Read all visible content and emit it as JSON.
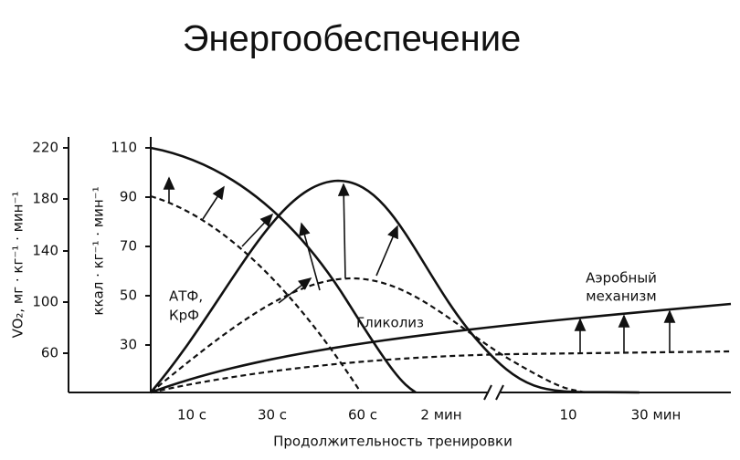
{
  "title": "Энергообеспечение",
  "left_axis": {
    "label": "VO₂, мг · кг⁻¹ · мин⁻¹",
    "ticks": [
      "220",
      "180",
      "140",
      "100",
      "60"
    ]
  },
  "right_axis": {
    "label": "ккал · кг⁻¹ · мин⁻¹",
    "ticks": [
      "110",
      "90",
      "70",
      "50",
      "30"
    ]
  },
  "x_axis": {
    "label": "Продолжительность тренировки",
    "ticks": [
      "10 с",
      "30 с",
      "60 с",
      "2 мин",
      "10",
      "30 мин"
    ]
  },
  "curve_labels": {
    "atp": [
      "АТФ,",
      "КрФ"
    ],
    "glycolysis": "Гликолиз",
    "aerobic": [
      "Аэробный",
      "механизм"
    ]
  }
}
